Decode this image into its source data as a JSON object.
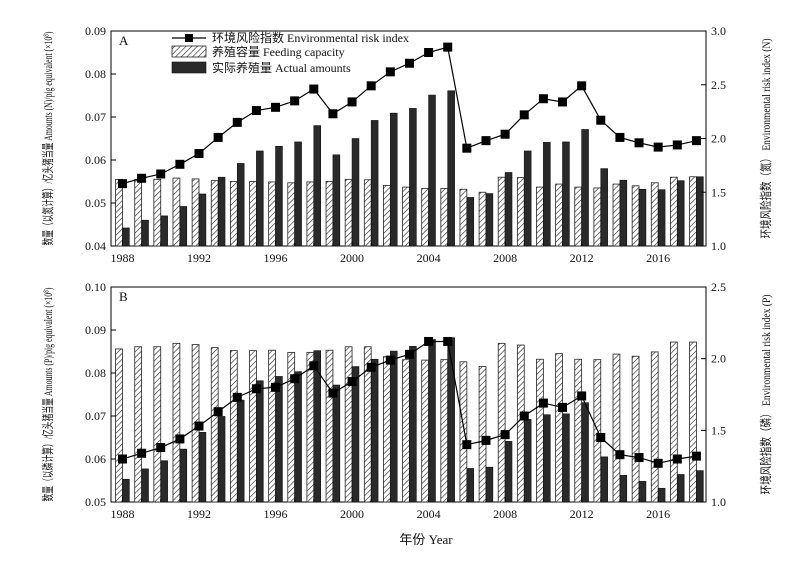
{
  "x_axis_title": "年份 Year",
  "chart_data": [
    {
      "type": "bar",
      "panel": "A",
      "x": [
        1988,
        1989,
        1990,
        1991,
        1992,
        1993,
        1994,
        1995,
        1996,
        1997,
        1998,
        1999,
        2000,
        2001,
        2002,
        2003,
        2004,
        2005,
        2006,
        2007,
        2008,
        2009,
        2010,
        2011,
        2012,
        2013,
        2014,
        2015,
        2016,
        2017,
        2018
      ],
      "xticks": [
        "1988",
        "1992",
        "1996",
        "2000",
        "2004",
        "2008",
        "2012",
        "2016"
      ],
      "ylabel": "数量（以氮计算）/亿头猪当量 Amounts (N)/pig equivalent (×10⁸)",
      "y2label": "环境风险指数（氮） Environmental risk index (N)",
      "ylim": [
        0.04,
        0.09
      ],
      "yticks": [
        "0.04",
        "0.05",
        "0.06",
        "0.07",
        "0.08",
        "0.09"
      ],
      "y2lim": [
        1.0,
        3.0
      ],
      "y2ticks": [
        "1.0",
        "1.5",
        "2.0",
        "2.5",
        "3.0"
      ],
      "legend_position": "top-left",
      "series": [
        {
          "name": "养殖容量 Feeding capacity",
          "kind": "bar",
          "pattern": "hatch",
          "values": [
            0.0555,
            0.0555,
            0.0555,
            0.0558,
            0.0556,
            0.0552,
            0.055,
            0.055,
            0.0549,
            0.0547,
            0.0549,
            0.055,
            0.0555,
            0.0554,
            0.0541,
            0.0537,
            0.0534,
            0.0534,
            0.0532,
            0.0525,
            0.056,
            0.0559,
            0.0537,
            0.0544,
            0.0537,
            0.0535,
            0.0544,
            0.054,
            0.0547,
            0.056,
            0.0561
          ]
        },
        {
          "name": "实际养殖量 Actual amounts",
          "kind": "bar",
          "pattern": "solid",
          "values": [
            0.0442,
            0.046,
            0.047,
            0.0492,
            0.0521,
            0.056,
            0.0592,
            0.0621,
            0.0632,
            0.0642,
            0.068,
            0.0612,
            0.065,
            0.0692,
            0.0709,
            0.072,
            0.0751,
            0.0761,
            0.0513,
            0.0522,
            0.0571,
            0.0621,
            0.0641,
            0.0642,
            0.0671,
            0.058,
            0.0553,
            0.0532,
            0.0531,
            0.0552,
            0.0561
          ]
        },
        {
          "name": "环境风险指数 Environmental risk index",
          "kind": "line",
          "axis": "right",
          "values": [
            1.58,
            1.63,
            1.67,
            1.76,
            1.86,
            2.01,
            2.15,
            2.26,
            2.29,
            2.35,
            2.46,
            2.23,
            2.34,
            2.49,
            2.62,
            2.7,
            2.8,
            2.85,
            1.91,
            1.98,
            2.04,
            2.22,
            2.37,
            2.34,
            2.49,
            2.17,
            2.01,
            1.96,
            1.92,
            1.94,
            1.98
          ]
        }
      ]
    },
    {
      "type": "bar",
      "panel": "B",
      "x": [
        1988,
        1989,
        1990,
        1991,
        1992,
        1993,
        1994,
        1995,
        1996,
        1997,
        1998,
        1999,
        2000,
        2001,
        2002,
        2003,
        2004,
        2005,
        2006,
        2007,
        2008,
        2009,
        2010,
        2011,
        2012,
        2013,
        2014,
        2015,
        2016,
        2017,
        2018
      ],
      "xticks": [
        "1988",
        "1992",
        "1996",
        "2000",
        "2004",
        "2008",
        "2012",
        "2016"
      ],
      "ylabel": "数量（以磷计算）/亿头猪当量 Amounts (P)/pig equivalent (×10⁸)",
      "y2label": "环境风险指数（磷） Environmental risk index (P)",
      "ylim": [
        0.05,
        0.1
      ],
      "yticks": [
        "0.05",
        "0.06",
        "0.07",
        "0.08",
        "0.09",
        "0.10"
      ],
      "y2lim": [
        1.0,
        2.5
      ],
      "y2ticks": [
        "1.0",
        "1.5",
        "2.0",
        "2.5"
      ],
      "series": [
        {
          "name": "养殖容量 Feeding capacity",
          "kind": "bar",
          "pattern": "hatch",
          "values": [
            0.0856,
            0.0861,
            0.0861,
            0.0869,
            0.0866,
            0.0859,
            0.0852,
            0.0852,
            0.0853,
            0.0848,
            0.0848,
            0.0853,
            0.0861,
            0.0861,
            0.0838,
            0.0831,
            0.083,
            0.0831,
            0.0826,
            0.0815,
            0.0869,
            0.0865,
            0.0832,
            0.0845,
            0.0832,
            0.0831,
            0.0844,
            0.0839,
            0.0849,
            0.0872,
            0.0872
          ]
        },
        {
          "name": "实际养殖量 Actual amounts",
          "kind": "bar",
          "pattern": "solid",
          "values": [
            0.0553,
            0.0577,
            0.0596,
            0.0623,
            0.0662,
            0.0699,
            0.0737,
            0.0782,
            0.0792,
            0.0803,
            0.0852,
            0.0772,
            0.0815,
            0.0832,
            0.0851,
            0.0862,
            0.0878,
            0.0882,
            0.0578,
            0.0581,
            0.0641,
            0.0692,
            0.0703,
            0.0705,
            0.0731,
            0.0605,
            0.0562,
            0.0548,
            0.0532,
            0.0564,
            0.0573
          ]
        },
        {
          "name": "环境风险指数 Environmental risk index",
          "kind": "line",
          "axis": "right",
          "values": [
            1.3,
            1.34,
            1.38,
            1.44,
            1.53,
            1.63,
            1.73,
            1.79,
            1.8,
            1.86,
            1.95,
            1.76,
            1.84,
            1.94,
            1.99,
            2.03,
            2.12,
            2.12,
            1.4,
            1.43,
            1.47,
            1.6,
            1.69,
            1.66,
            1.74,
            1.45,
            1.33,
            1.31,
            1.27,
            1.3,
            1.32
          ]
        }
      ]
    }
  ]
}
